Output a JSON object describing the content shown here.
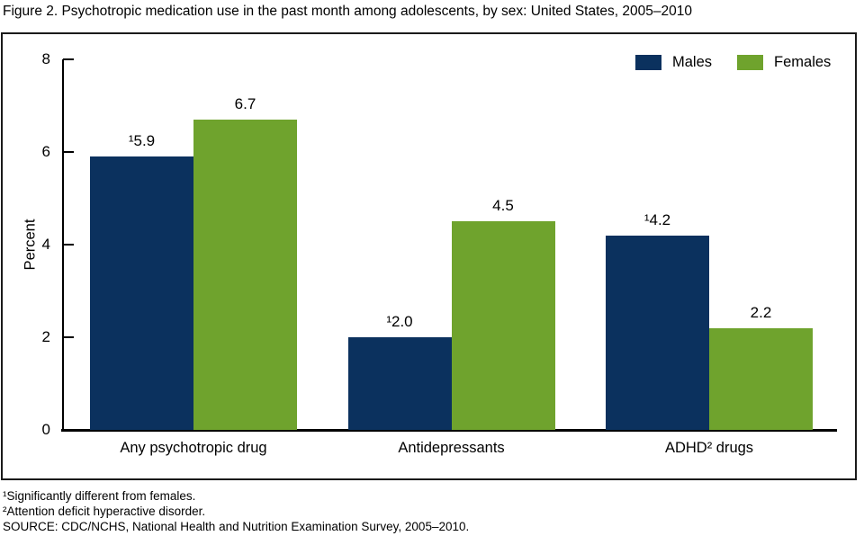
{
  "title": "Figure 2. Psychotropic medication use in the past month among adolescents, by sex: United States, 2005–2010",
  "chart_data": {
    "type": "bar",
    "categories": [
      "Any psychotropic drug",
      "Antidepressants",
      "ADHD² drugs"
    ],
    "series": [
      {
        "name": "Males",
        "color": "#0b315e",
        "values": [
          5.9,
          2.0,
          4.2
        ],
        "bar_labels": [
          "¹5.9",
          "¹2.0",
          "¹4.2"
        ]
      },
      {
        "name": "Females",
        "color": "#6fa32d",
        "values": [
          6.7,
          4.5,
          2.2
        ],
        "bar_labels": [
          "6.7",
          "4.5",
          "2.2"
        ]
      }
    ],
    "xlabel": "",
    "ylabel": "Percent",
    "ylim": [
      0,
      8
    ],
    "yticks": [
      0,
      2,
      4,
      6,
      8
    ],
    "grid": false,
    "legend_position": "top-right",
    "axis_color": "#000000"
  },
  "footnotes": [
    "¹Significantly different from females.",
    "²Attention deficit hyperactive disorder.",
    "SOURCE: CDC/NCHS, National Health and Nutrition Examination Survey, 2005–2010."
  ]
}
